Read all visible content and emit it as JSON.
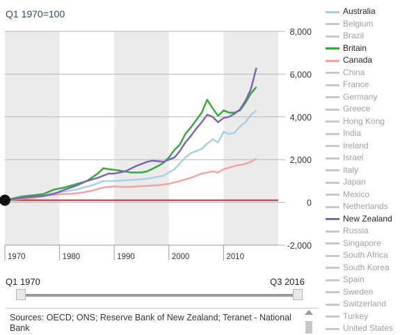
{
  "chart_data": {
    "type": "line",
    "subtitle": "Q1 1970=100",
    "x_ticks": [
      1970,
      1980,
      1990,
      2000,
      2010
    ],
    "xlim": [
      1970,
      2020
    ],
    "ylim": [
      -2000,
      8000
    ],
    "y_ticks": [
      -2000,
      0,
      2000,
      4000,
      6000,
      8000
    ],
    "y_tick_labels": [
      "-2,000",
      "0",
      "2,000",
      "4,000",
      "6,000",
      "8,000"
    ],
    "grid": "horizontal",
    "baseline": 100,
    "series": [
      {
        "name": "Australia",
        "color": "#a9cfe6",
        "x": [
          1970,
          1974,
          1977,
          1980,
          1983,
          1986,
          1988,
          1990,
          1993,
          1996,
          1999,
          2001,
          2003,
          2004,
          2006,
          2007,
          2008,
          2009,
          2010,
          2011,
          2012,
          2013,
          2014,
          2015,
          2016
        ],
        "y": [
          100,
          250,
          350,
          470,
          600,
          800,
          1000,
          1000,
          1050,
          1100,
          1250,
          1550,
          2100,
          2300,
          2500,
          2750,
          2950,
          2800,
          3300,
          3200,
          3250,
          3550,
          3750,
          4100,
          4300
        ]
      },
      {
        "name": "Britain",
        "color": "#39a83c",
        "x": [
          1970,
          1973,
          1975,
          1977,
          1979,
          1981,
          1983,
          1985,
          1987,
          1988,
          1989,
          1990,
          1992,
          1993,
          1995,
          1996,
          1998,
          1999,
          2000,
          2001,
          2002,
          2003,
          2004,
          2005,
          2006,
          2007,
          2008,
          2009,
          2010,
          2011,
          2012,
          2013,
          2014,
          2015,
          2016
        ],
        "y": [
          100,
          270,
          330,
          390,
          600,
          700,
          850,
          1000,
          1350,
          1600,
          1550,
          1520,
          1450,
          1400,
          1400,
          1450,
          1700,
          1850,
          2100,
          2450,
          2700,
          3200,
          3500,
          3850,
          4200,
          4800,
          4400,
          4050,
          4300,
          4200,
          4200,
          4300,
          4650,
          5100,
          5400
        ]
      },
      {
        "name": "Canada",
        "color": "#f4a3a3",
        "x": [
          1970,
          1975,
          1978,
          1980,
          1982,
          1984,
          1986,
          1988,
          1990,
          1992,
          1995,
          1998,
          2000,
          2002,
          2004,
          2006,
          2008,
          2009,
          2010,
          2012,
          2014,
          2015,
          2016
        ],
        "y": [
          100,
          200,
          330,
          380,
          400,
          450,
          550,
          700,
          750,
          720,
          760,
          800,
          870,
          1000,
          1150,
          1350,
          1450,
          1400,
          1550,
          1700,
          1800,
          1900,
          2050
        ]
      },
      {
        "name": "New Zealand",
        "color": "#7a66b5",
        "x": [
          1970,
          1974,
          1977,
          1979,
          1981,
          1983,
          1985,
          1987,
          1989,
          1990,
          1992,
          1994,
          1996,
          1997,
          1999,
          2000,
          2001,
          2002,
          2003,
          2004,
          2005,
          2006,
          2007,
          2008,
          2009,
          2010,
          2011,
          2012,
          2013,
          2014,
          2015,
          2016
        ],
        "y": [
          100,
          240,
          300,
          400,
          600,
          780,
          1000,
          1150,
          1350,
          1350,
          1450,
          1700,
          1900,
          1950,
          1900,
          2000,
          2100,
          2400,
          2800,
          3100,
          3450,
          3750,
          4100,
          4000,
          3750,
          3950,
          4000,
          4150,
          4350,
          4750,
          5300,
          6300
        ]
      }
    ]
  },
  "legend": [
    {
      "label": "Australia",
      "color": "#a9cfe6",
      "active": true
    },
    {
      "label": "Belgium",
      "color": "#c8c8c8",
      "active": false
    },
    {
      "label": "Brazil",
      "color": "#c8c8c8",
      "active": false
    },
    {
      "label": "Britain",
      "color": "#39a83c",
      "active": true
    },
    {
      "label": "Canada",
      "color": "#f4a3a3",
      "active": true
    },
    {
      "label": "China",
      "color": "#c8c8c8",
      "active": false
    },
    {
      "label": "France",
      "color": "#c8c8c8",
      "active": false
    },
    {
      "label": "Germany",
      "color": "#c8c8c8",
      "active": false
    },
    {
      "label": "Greece",
      "color": "#c8c8c8",
      "active": false
    },
    {
      "label": "Hong Kong",
      "color": "#c8c8c8",
      "active": false
    },
    {
      "label": "India",
      "color": "#c8c8c8",
      "active": false
    },
    {
      "label": "Ireland",
      "color": "#c8c8c8",
      "active": false
    },
    {
      "label": "Israel",
      "color": "#c8c8c8",
      "active": false
    },
    {
      "label": "Italy",
      "color": "#c8c8c8",
      "active": false
    },
    {
      "label": "Japan",
      "color": "#c8c8c8",
      "active": false
    },
    {
      "label": "Mexico",
      "color": "#c8c8c8",
      "active": false
    },
    {
      "label": "Netherlands",
      "color": "#c8c8c8",
      "active": false
    },
    {
      "label": "New Zealand",
      "color": "#7a66b5",
      "active": true
    },
    {
      "label": "Russia",
      "color": "#c8c8c8",
      "active": false
    },
    {
      "label": "Singapore",
      "color": "#c8c8c8",
      "active": false
    },
    {
      "label": "South Africa",
      "color": "#c8c8c8",
      "active": false
    },
    {
      "label": "South Korea",
      "color": "#c8c8c8",
      "active": false
    },
    {
      "label": "Spain",
      "color": "#c8c8c8",
      "active": false
    },
    {
      "label": "Sweden",
      "color": "#c8c8c8",
      "active": false
    },
    {
      "label": "Switzerland",
      "color": "#c8c8c8",
      "active": false
    },
    {
      "label": "Turkey",
      "color": "#c8c8c8",
      "active": false
    },
    {
      "label": "United States",
      "color": "#c8c8c8",
      "active": false
    }
  ],
  "slider": {
    "start_label": "Q1 1970",
    "end_label": "Q3 2016"
  },
  "source": "Sources: OECD; ONS; Reserve Bank of New Zealand; Teranet - National Bank",
  "colors": {
    "baseline": "#c0282d",
    "band": "#ebebeb",
    "text_active": "#222222",
    "text_inactive": "#a0a0a0"
  }
}
